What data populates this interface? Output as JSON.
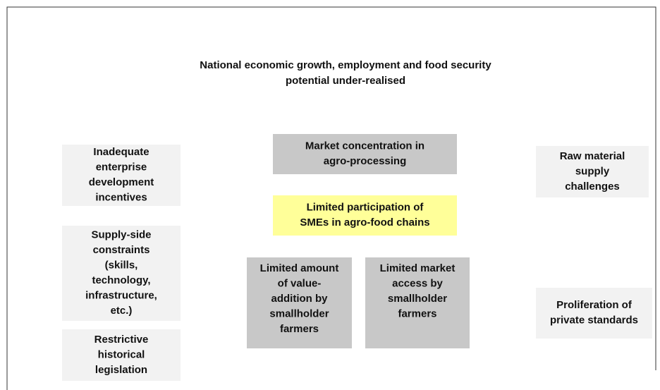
{
  "title": [
    "National economic growth, employment and food security",
    "potential under-realised"
  ],
  "boxes": [
    {
      "lines": [
        "Inadequate",
        "enterprise",
        "development",
        "incentives"
      ]
    },
    {
      "lines": [
        "Supply-side",
        "constraints",
        "(skills,",
        "technology,",
        "infrastructure,",
        "etc.)"
      ]
    },
    {
      "lines": [
        "Restrictive",
        "historical",
        "legislation"
      ]
    },
    {
      "lines": [
        "Market concentration in",
        "agro-processing"
      ]
    },
    {
      "lines": [
        "Limited participation of",
        "SMEs in agro-food chains"
      ]
    },
    {
      "lines": [
        "Limited amount",
        "of value-",
        "addition by",
        "smallholder",
        "farmers"
      ]
    },
    {
      "lines": [
        "Limited market",
        "access by",
        "smallholder",
        "farmers"
      ]
    },
    {
      "lines": [
        "Raw material",
        "supply",
        "challenges"
      ]
    },
    {
      "lines": [
        "Proliferation of",
        "private standards"
      ]
    }
  ]
}
